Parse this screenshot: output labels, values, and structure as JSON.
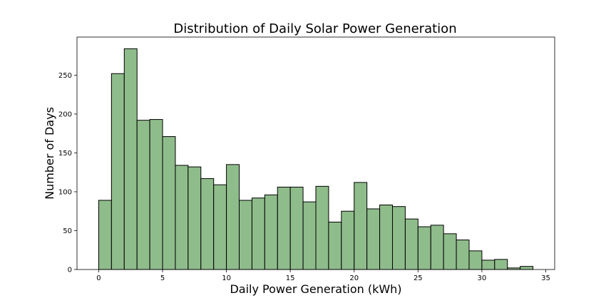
{
  "chart_data": {
    "type": "bar",
    "subtype": "histogram",
    "title": "Distribution of Daily Solar Power Generation",
    "xlabel": "Daily Power Generation (kWh)",
    "ylabel": "Number of Days",
    "xlim": [
      -1.7,
      35.7
    ],
    "ylim": [
      0,
      299
    ],
    "xticks": [
      0,
      5,
      10,
      15,
      20,
      25,
      30,
      35
    ],
    "yticks": [
      0,
      50,
      100,
      150,
      200,
      250
    ],
    "bin_width": 1.0,
    "bin_start": 0.0,
    "values": [
      89,
      252,
      284,
      192,
      193,
      171,
      134,
      132,
      117,
      109,
      135,
      89,
      92,
      96,
      106,
      106,
      87,
      107,
      61,
      75,
      112,
      78,
      83,
      81,
      65,
      55,
      57,
      46,
      38,
      24,
      12,
      13,
      2,
      4
    ],
    "bar_color": "#8fbc8b",
    "edge_color": "#000000",
    "grid": false,
    "legend": false
  }
}
